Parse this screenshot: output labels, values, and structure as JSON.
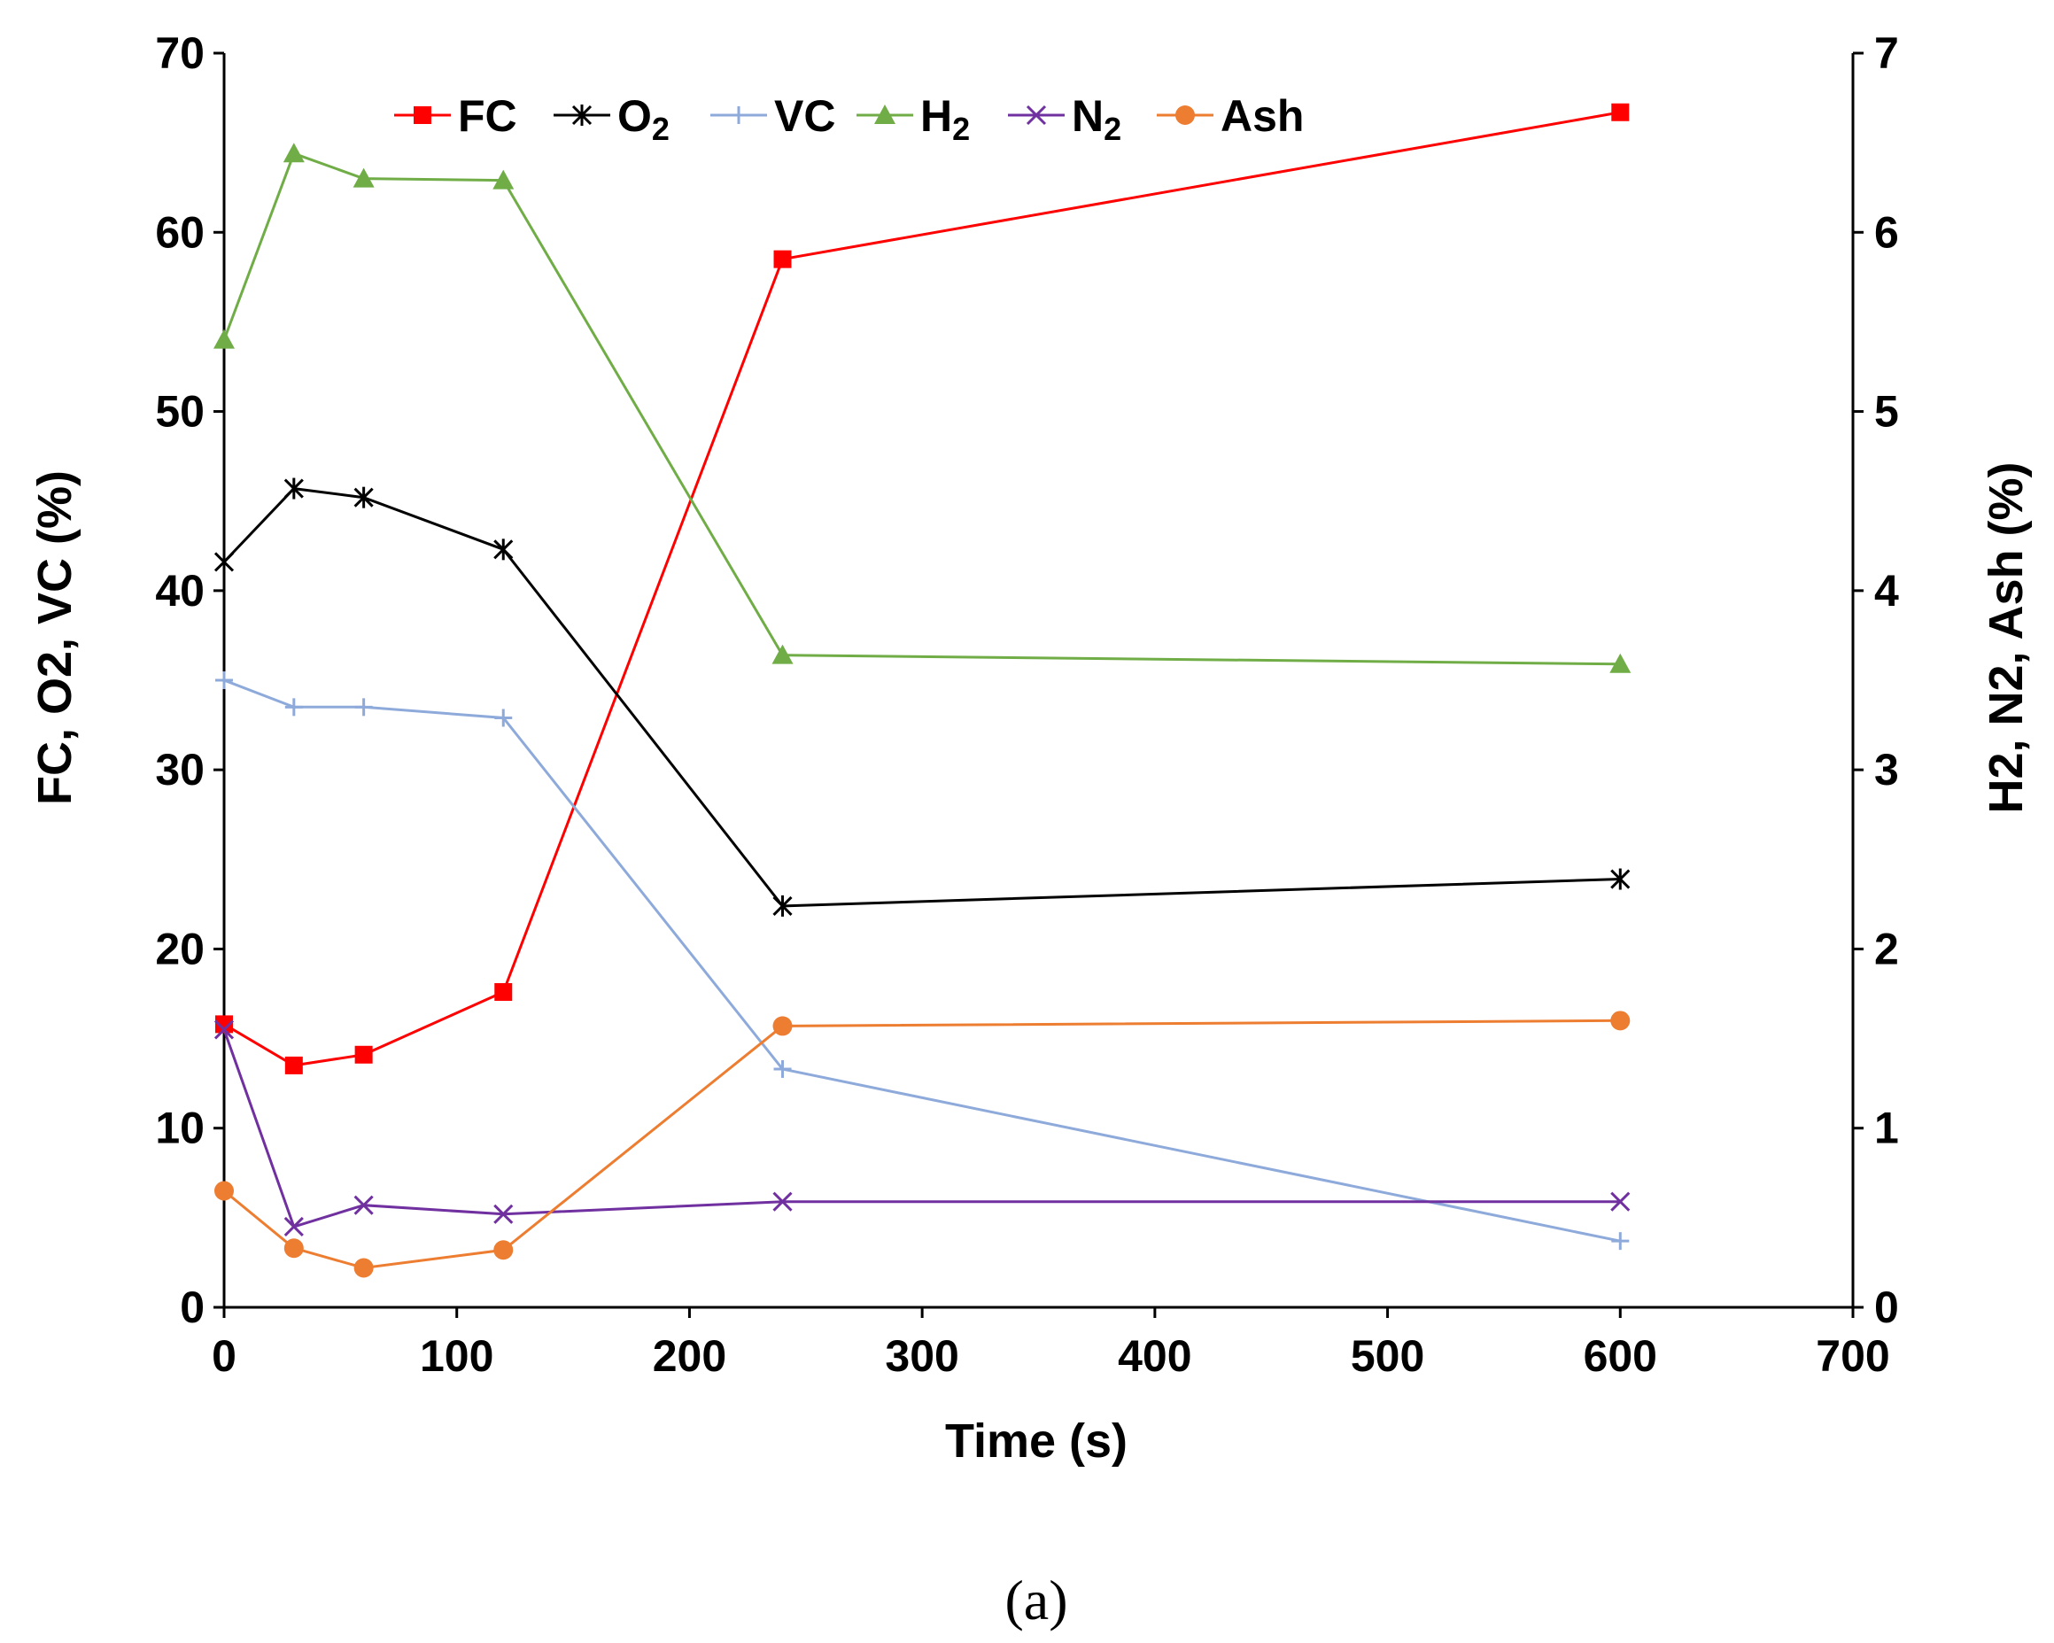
{
  "chart_data": {
    "type": "line",
    "x_label": "Time (s)",
    "y_left_label": "FC, O2, VC (%)",
    "y_right_label": "H2, N2, Ash (%)",
    "caption": "(a)",
    "x_range": [
      0,
      700
    ],
    "x_ticks": [
      0,
      100,
      200,
      300,
      400,
      500,
      600,
      700
    ],
    "y_left_range": [
      0,
      70
    ],
    "y_left_ticks": [
      0,
      10,
      20,
      30,
      40,
      50,
      60,
      70
    ],
    "y_right_range": [
      0,
      7
    ],
    "y_right_ticks": [
      0,
      1,
      2,
      3,
      4,
      5,
      6,
      7
    ],
    "x": [
      0,
      30,
      60,
      120,
      240,
      600
    ],
    "series": [
      {
        "name": "FC",
        "legend_main": "FC",
        "legend_sub": "",
        "axis": "left",
        "color": "#ff0000",
        "marker": "square",
        "values": [
          15.8,
          13.5,
          14.1,
          17.6,
          58.5,
          66.7
        ]
      },
      {
        "name": "O2",
        "legend_main": "O",
        "legend_sub": "2",
        "axis": "left",
        "color": "#000000",
        "marker": "asterisk",
        "values": [
          41.6,
          45.7,
          45.2,
          42.3,
          22.4,
          23.9
        ]
      },
      {
        "name": "VC",
        "legend_main": "VC",
        "legend_sub": "",
        "axis": "left",
        "color": "#8eaadb",
        "marker": "plus",
        "values": [
          35.0,
          33.5,
          33.5,
          32.9,
          13.3,
          3.7
        ]
      },
      {
        "name": "H2",
        "legend_main": "H",
        "legend_sub": "2",
        "axis": "right",
        "color": "#70ad47",
        "marker": "triangle",
        "values": [
          5.4,
          6.44,
          6.3,
          6.29,
          3.64,
          3.59
        ]
      },
      {
        "name": "N2",
        "legend_main": "N",
        "legend_sub": "2",
        "axis": "right",
        "color": "#7030a0",
        "marker": "x",
        "values": [
          1.55,
          0.45,
          0.57,
          0.52,
          0.59,
          0.59
        ]
      },
      {
        "name": "Ash",
        "legend_main": "Ash",
        "legend_sub": "",
        "axis": "right",
        "color": "#ed7d31",
        "marker": "circle",
        "values": [
          0.65,
          0.33,
          0.22,
          0.32,
          1.57,
          1.6
        ]
      }
    ]
  }
}
